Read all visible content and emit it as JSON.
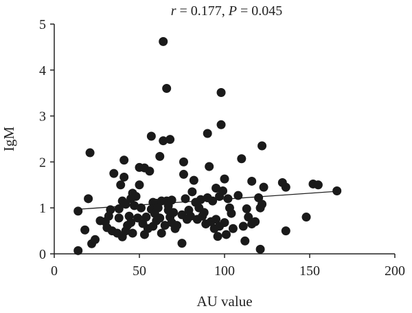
{
  "chart_data": {
    "type": "scatter",
    "title": {
      "r_sym": "r",
      "r_rest": " = 0.177, ",
      "p_sym": "P",
      "p_rest": " = 0.045"
    },
    "xlabel": "AU value",
    "ylabel": "IgM",
    "xlim": [
      0,
      200
    ],
    "ylim": [
      0,
      5
    ],
    "xticks": [
      "0",
      "50",
      "100",
      "150",
      "200"
    ],
    "yticks": [
      "0",
      "1",
      "2",
      "3",
      "4",
      "5"
    ],
    "grid": false,
    "legend": "none",
    "point_color": "#1a1a1a",
    "trendline": {
      "x": [
        14,
        166
      ],
      "y": [
        0.97,
        1.36
      ]
    },
    "points": [
      [
        14,
        0.07
      ],
      [
        14,
        0.93
      ],
      [
        18,
        0.52
      ],
      [
        20,
        1.2
      ],
      [
        21,
        2.2
      ],
      [
        22,
        0.22
      ],
      [
        24,
        0.31
      ],
      [
        27,
        0.72
      ],
      [
        30,
        0.7
      ],
      [
        31,
        0.57
      ],
      [
        32,
        0.82
      ],
      [
        33,
        0.96
      ],
      [
        34,
        0.5
      ],
      [
        35,
        1.75
      ],
      [
        37,
        0.45
      ],
      [
        38,
        0.98
      ],
      [
        38,
        0.78
      ],
      [
        39,
        1.5
      ],
      [
        40,
        1.15
      ],
      [
        40,
        0.37
      ],
      [
        41,
        1.67
      ],
      [
        41,
        2.04
      ],
      [
        42,
        1.08
      ],
      [
        42,
        0.5
      ],
      [
        43,
        0.62
      ],
      [
        44,
        0.82
      ],
      [
        45,
        1.2
      ],
      [
        45,
        0.68
      ],
      [
        46,
        1.32
      ],
      [
        46,
        0.45
      ],
      [
        47,
        1.05
      ],
      [
        48,
        1.25
      ],
      [
        49,
        0.78
      ],
      [
        50,
        1.88
      ],
      [
        50,
        1.5
      ],
      [
        51,
        1.0
      ],
      [
        52,
        0.66
      ],
      [
        53,
        1.87
      ],
      [
        53,
        0.42
      ],
      [
        54,
        0.8
      ],
      [
        55,
        0.55
      ],
      [
        56,
        1.8
      ],
      [
        57,
        2.56
      ],
      [
        57,
        0.97
      ],
      [
        58,
        1.12
      ],
      [
        58,
        0.6
      ],
      [
        59,
        0.88
      ],
      [
        60,
        1.1
      ],
      [
        60,
        0.72
      ],
      [
        61,
        1.0
      ],
      [
        62,
        0.78
      ],
      [
        62,
        2.12
      ],
      [
        63,
        1.15
      ],
      [
        63,
        0.45
      ],
      [
        64,
        4.62
      ],
      [
        64,
        2.46
      ],
      [
        65,
        0.62
      ],
      [
        66,
        1.15
      ],
      [
        66,
        3.6
      ],
      [
        67,
        0.95
      ],
      [
        67,
        1.05
      ],
      [
        68,
        2.49
      ],
      [
        68,
        0.8
      ],
      [
        69,
        1.17
      ],
      [
        69,
        0.68
      ],
      [
        70,
        0.9
      ],
      [
        71,
        0.55
      ],
      [
        72,
        0.62
      ],
      [
        75,
        0.23
      ],
      [
        75,
        0.85
      ],
      [
        76,
        2.0
      ],
      [
        76,
        1.73
      ],
      [
        77,
        1.2
      ],
      [
        78,
        0.75
      ],
      [
        79,
        0.95
      ],
      [
        80,
        0.82
      ],
      [
        81,
        1.35
      ],
      [
        82,
        1.6
      ],
      [
        83,
        1.12
      ],
      [
        84,
        0.75
      ],
      [
        85,
        1.0
      ],
      [
        86,
        1.18
      ],
      [
        87,
        0.82
      ],
      [
        88,
        0.9
      ],
      [
        89,
        0.65
      ],
      [
        90,
        2.62
      ],
      [
        90,
        1.22
      ],
      [
        91,
        1.9
      ],
      [
        92,
        0.7
      ],
      [
        93,
        1.15
      ],
      [
        94,
        0.55
      ],
      [
        95,
        1.43
      ],
      [
        95,
        0.75
      ],
      [
        96,
        0.38
      ],
      [
        97,
        0.6
      ],
      [
        97,
        1.25
      ],
      [
        98,
        2.81
      ],
      [
        98,
        3.51
      ],
      [
        99,
        1.37
      ],
      [
        100,
        1.63
      ],
      [
        100,
        0.68
      ],
      [
        101,
        0.42
      ],
      [
        102,
        1.2
      ],
      [
        103,
        1.0
      ],
      [
        104,
        0.88
      ],
      [
        105,
        0.55
      ],
      [
        108,
        1.27
      ],
      [
        110,
        2.07
      ],
      [
        111,
        0.6
      ],
      [
        112,
        0.28
      ],
      [
        113,
        0.98
      ],
      [
        114,
        0.8
      ],
      [
        116,
        0.65
      ],
      [
        116,
        1.58
      ],
      [
        118,
        0.7
      ],
      [
        120,
        1.22
      ],
      [
        121,
        1.0
      ],
      [
        121,
        0.1
      ],
      [
        122,
        1.08
      ],
      [
        122,
        2.35
      ],
      [
        123,
        1.45
      ],
      [
        134,
        1.55
      ],
      [
        136,
        1.45
      ],
      [
        136,
        0.5
      ],
      [
        148,
        0.8
      ],
      [
        152,
        1.52
      ],
      [
        155,
        1.5
      ],
      [
        166,
        1.37
      ]
    ]
  }
}
